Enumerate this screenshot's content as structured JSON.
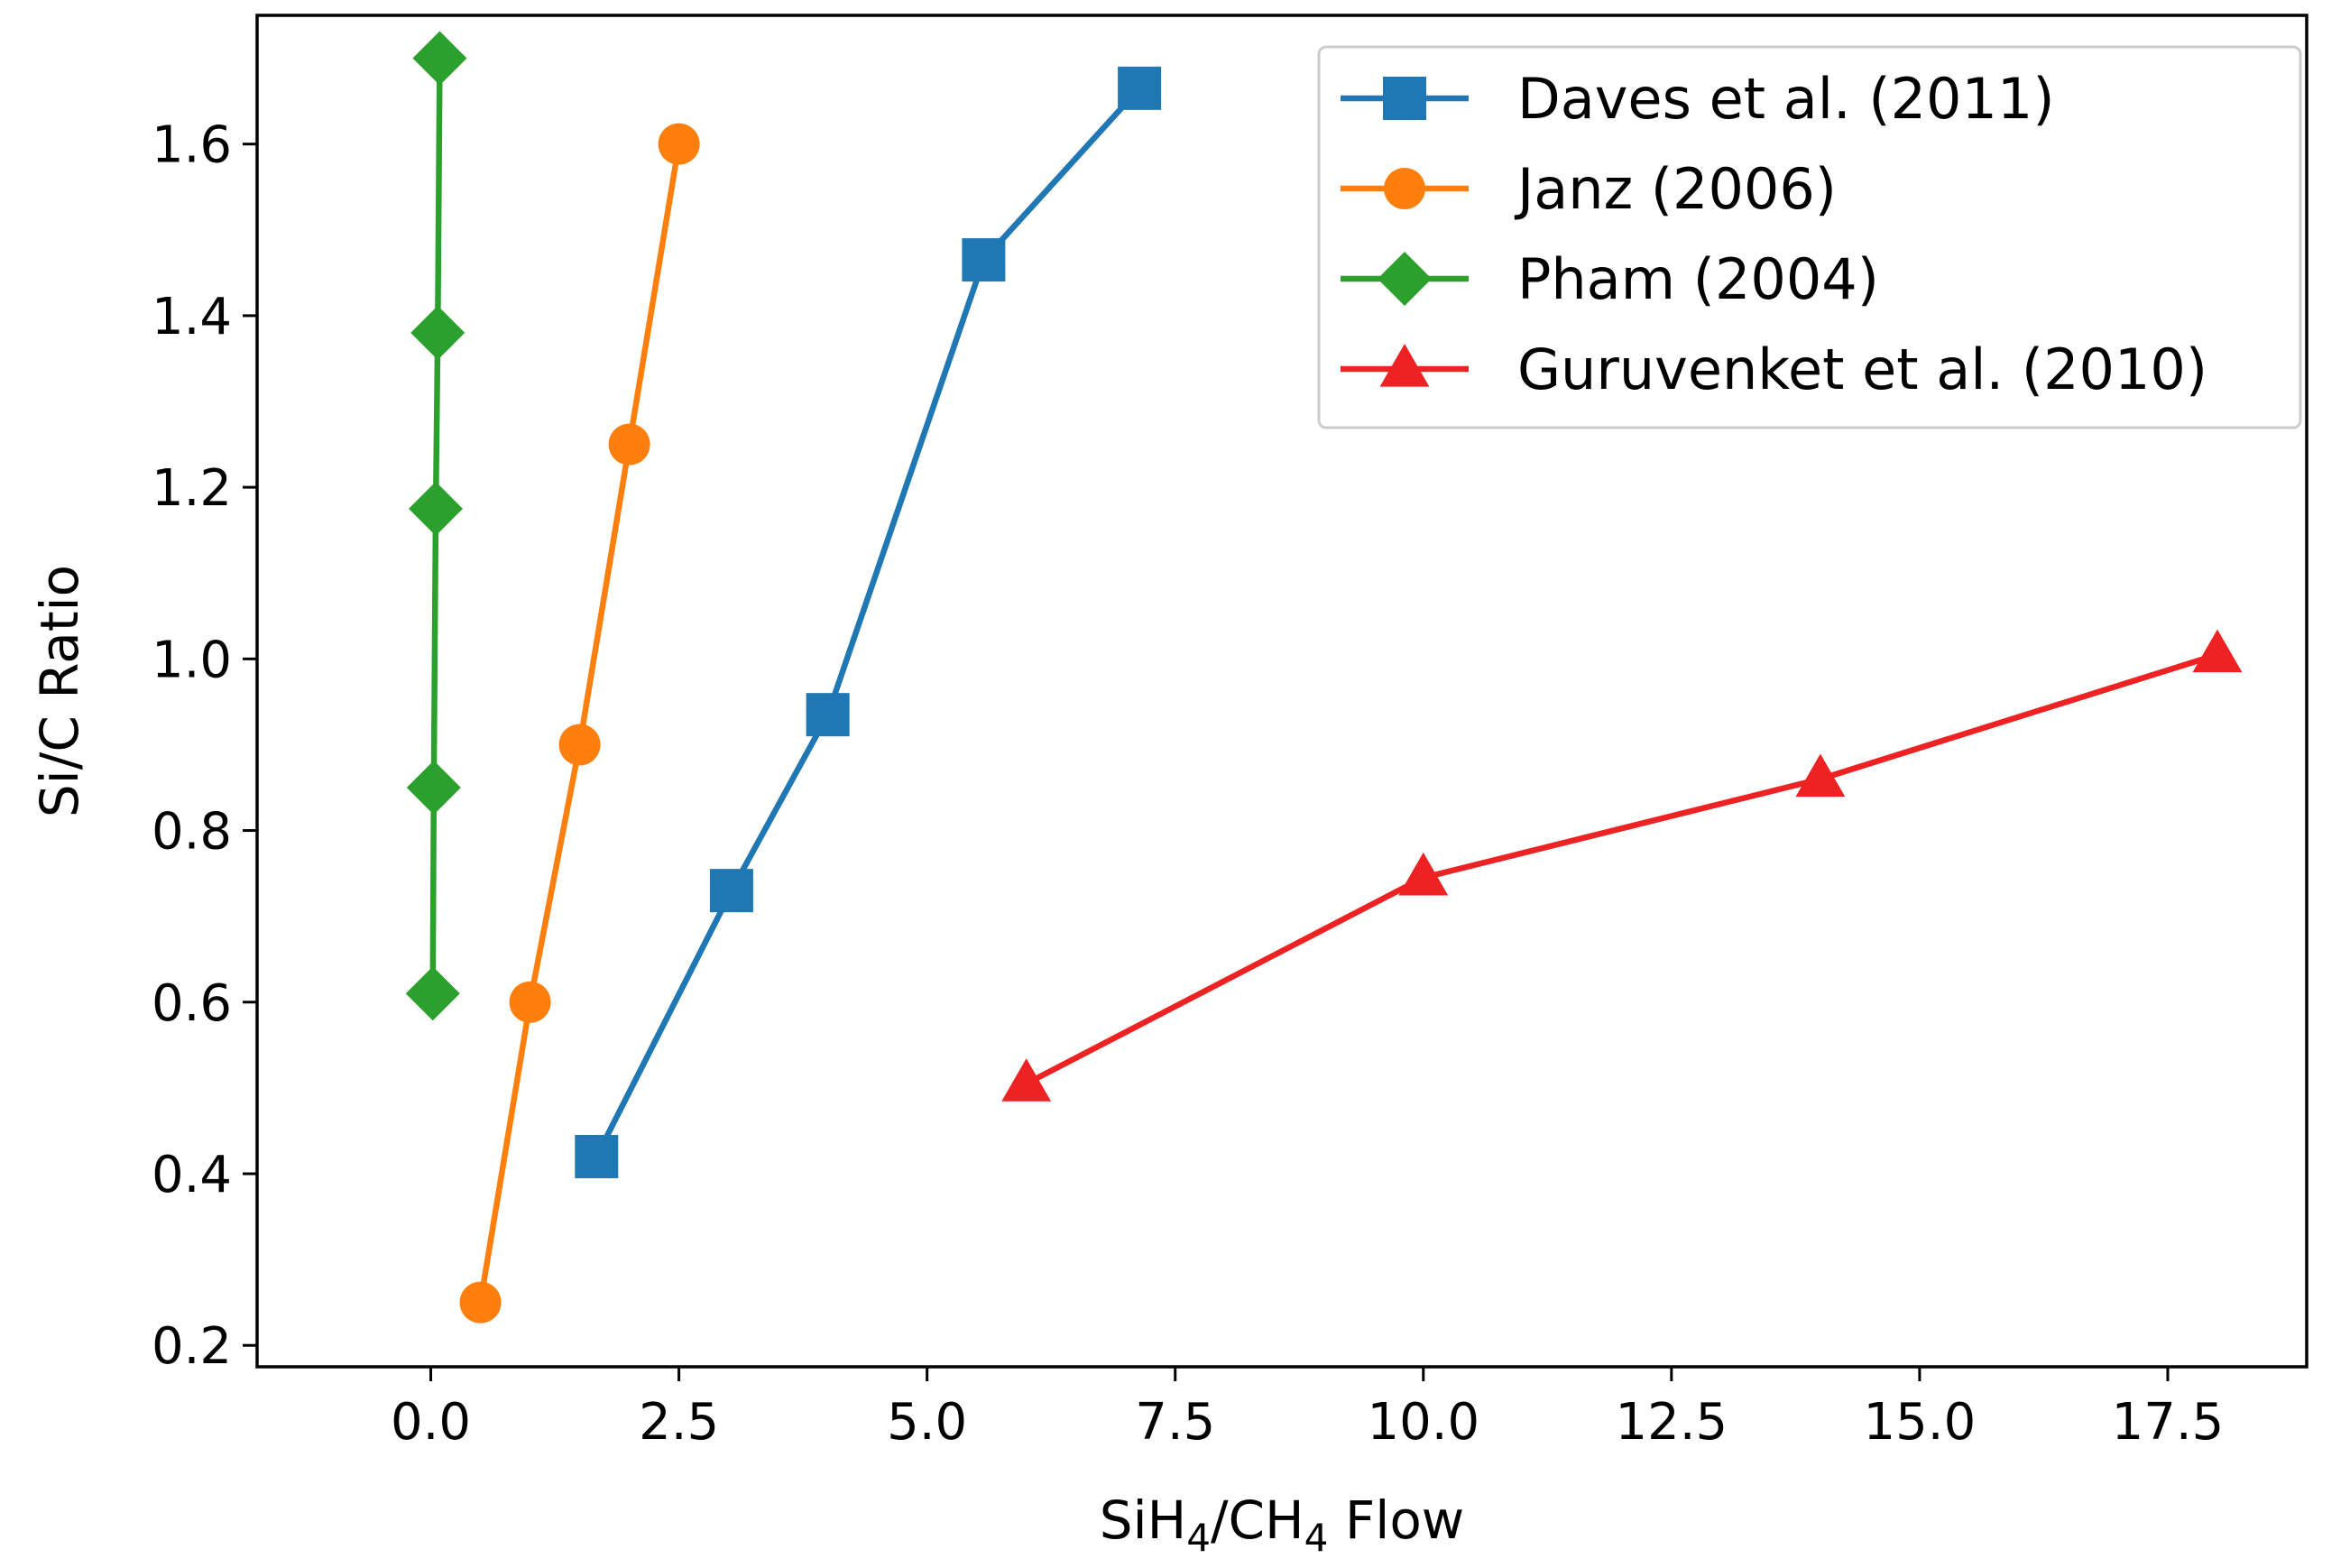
{
  "chart_data": {
    "type": "line",
    "xlabel": {
      "prefix": "SiH",
      "sub1": "4",
      "mid": "/CH",
      "sub2": "4",
      "suffix": " Flow"
    },
    "ylabel": "Si/C Ratio",
    "xlim": [
      -1.75,
      18.9
    ],
    "ylim": [
      0.175,
      1.75
    ],
    "xticks": [
      0.0,
      2.5,
      5.0,
      7.5,
      10.0,
      12.5,
      15.0,
      17.5
    ],
    "xtick_labels": [
      "0.0",
      "2.5",
      "5.0",
      "7.5",
      "10.0",
      "12.5",
      "15.0",
      "17.5"
    ],
    "yticks": [
      0.2,
      0.4,
      0.6,
      0.8,
      1.0,
      1.2,
      1.4,
      1.6
    ],
    "ytick_labels": [
      "0.2",
      "0.4",
      "0.6",
      "0.8",
      "1.0",
      "1.2",
      "1.4",
      "1.6"
    ],
    "grid": false,
    "legend_position": "top-right",
    "series": [
      {
        "name": "Daves et al. (2011)",
        "color": "#1f77b4",
        "marker": "square",
        "x": [
          1.67,
          3.03,
          4.0,
          5.57,
          7.14
        ],
        "y": [
          0.42,
          0.73,
          0.935,
          1.465,
          1.665
        ]
      },
      {
        "name": "Janz (2006)",
        "color": "#ff7f0e",
        "marker": "circle",
        "x": [
          0.5,
          1.0,
          1.5,
          2.0,
          2.5
        ],
        "y": [
          0.25,
          0.6,
          0.9,
          1.25,
          1.6
        ]
      },
      {
        "name": "Pham (2004)",
        "color": "#2ca02c",
        "marker": "diamond",
        "x": [
          0.02,
          0.03,
          0.05,
          0.07,
          0.09
        ],
        "y": [
          0.61,
          0.85,
          1.175,
          1.38,
          1.7
        ]
      },
      {
        "name": "Guruvenket et al. (2010)",
        "color": "#ee2222",
        "marker": "triangle",
        "x": [
          6.0,
          10.0,
          14.0,
          18.0
        ],
        "y": [
          0.505,
          0.745,
          0.86,
          1.005
        ]
      }
    ]
  }
}
